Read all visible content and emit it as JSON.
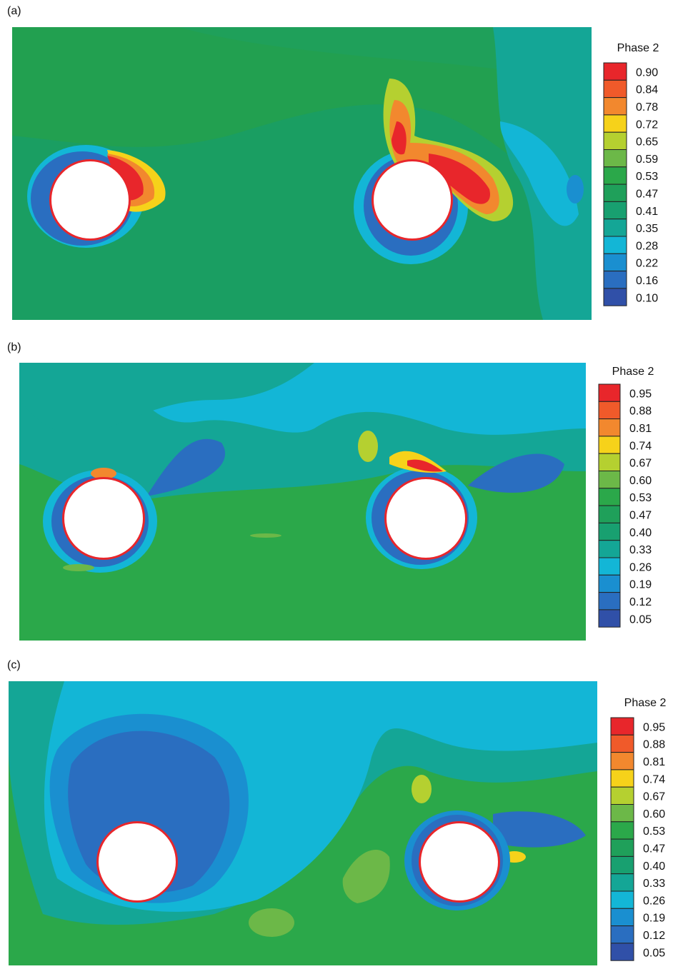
{
  "panels": [
    {
      "label": "(a)",
      "legend": {
        "title": "Phase 2",
        "levels": [
          "0.90",
          "0.84",
          "0.78",
          "0.72",
          "0.65",
          "0.59",
          "0.53",
          "0.47",
          "0.41",
          "0.35",
          "0.28",
          "0.22",
          "0.16",
          "0.10"
        ]
      }
    },
    {
      "label": "(b)",
      "legend": {
        "title": "Phase 2",
        "levels": [
          "0.95",
          "0.88",
          "0.81",
          "0.74",
          "0.67",
          "0.60",
          "0.53",
          "0.47",
          "0.40",
          "0.33",
          "0.26",
          "0.19",
          "0.12",
          "0.05"
        ]
      }
    },
    {
      "label": "(c)",
      "legend": {
        "title": "Phase 2",
        "levels": [
          "0.95",
          "0.88",
          "0.81",
          "0.74",
          "0.67",
          "0.60",
          "0.53",
          "0.47",
          "0.40",
          "0.33",
          "0.26",
          "0.19",
          "0.12",
          "0.05"
        ]
      }
    }
  ],
  "legend_colors": [
    "#e8262b",
    "#f05a2a",
    "#f2882e",
    "#f6d21a",
    "#b5d030",
    "#6cb848",
    "#2ba84a",
    "#1fa05a",
    "#18a070",
    "#14a696",
    "#13b6d6",
    "#1a8fd0",
    "#2a6ec0",
    "#3050a8"
  ]
}
